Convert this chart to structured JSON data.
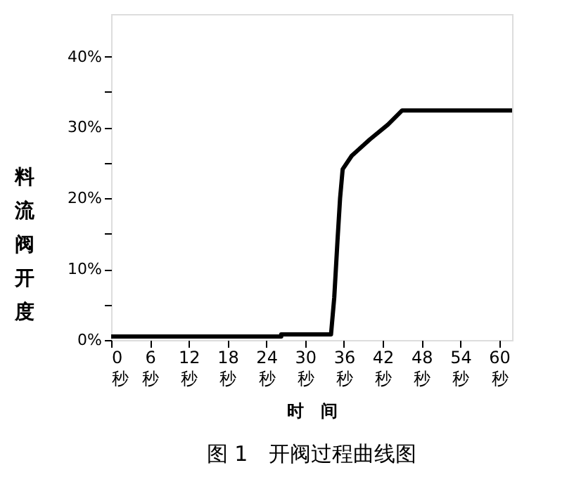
{
  "chart_data": {
    "type": "line",
    "title": "图 1　开阀过程曲线图",
    "xlabel": "时　间",
    "ylabel": "料流阀开度",
    "x": [
      0,
      26.3,
      26.3,
      34.0,
      34.5,
      35.0,
      35.4,
      35.8,
      37.2,
      40.0,
      42.8,
      45.0,
      62.0
    ],
    "series": [
      {
        "color": "#000000",
        "values": [
          0.5,
          0.5,
          0.8,
          0.8,
          6,
          14,
          20,
          24.1,
          26,
          28.3,
          30.4,
          32.4,
          32.4
        ]
      }
    ],
    "xlim": [
      0,
      62
    ],
    "ylim": [
      0,
      46
    ],
    "xticks": [
      {
        "value": 0,
        "label": "0\n秒"
      },
      {
        "value": 6,
        "label": "6\n秒"
      },
      {
        "value": 12,
        "label": "12\n秒"
      },
      {
        "value": 18,
        "label": "18\n秒"
      },
      {
        "value": 24,
        "label": "24\n秒"
      },
      {
        "value": 30,
        "label": "30\n秒"
      },
      {
        "value": 36,
        "label": "36\n秒"
      },
      {
        "value": 42,
        "label": "42\n秒"
      },
      {
        "value": 48,
        "label": "48\n秒"
      },
      {
        "value": 54,
        "label": "54\n秒"
      },
      {
        "value": 60,
        "label": "60\n秒"
      }
    ],
    "yticks": [
      {
        "value": 0,
        "label": "0%"
      },
      {
        "value": 5,
        "label": null
      },
      {
        "value": 10,
        "label": "10%"
      },
      {
        "value": 15,
        "label": null
      },
      {
        "value": 20,
        "label": "20%"
      },
      {
        "value": 25,
        "label": null
      },
      {
        "value": 30,
        "label": "30%"
      },
      {
        "value": 35,
        "label": null
      },
      {
        "value": 40,
        "label": "40%"
      }
    ],
    "grid": false,
    "legend": false,
    "marker": "none",
    "line_style": "solid"
  }
}
